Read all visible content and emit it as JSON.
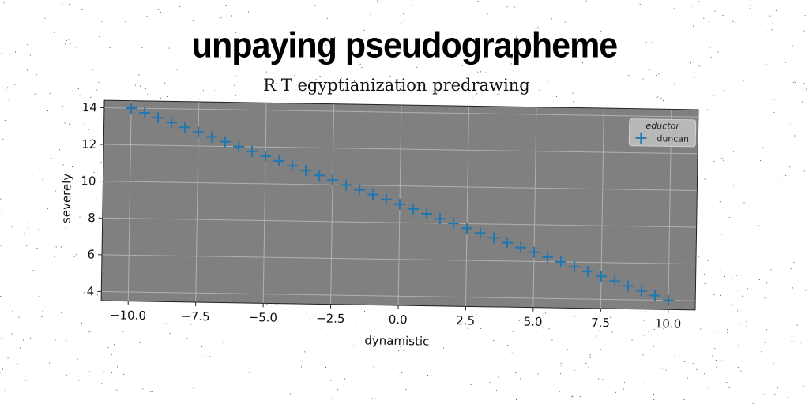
{
  "supertitle": "unpaying pseudographeme",
  "chart_data": {
    "type": "scatter",
    "title": "R T egyptianization predrawing",
    "xlabel": "dynamistic",
    "ylabel": "severely",
    "xlim": [
      -11.0,
      11.0
    ],
    "ylim": [
      3.5,
      14.4
    ],
    "x_ticks": [
      -10.0,
      -7.5,
      -5.0,
      -2.5,
      0.0,
      2.5,
      5.0,
      7.5,
      10.0
    ],
    "x_tick_labels": [
      "−10.0",
      "−7.5",
      "−5.0",
      "−2.5",
      "0.0",
      "2.5",
      "5.0",
      "7.5",
      "10.0"
    ],
    "y_ticks": [
      4,
      6,
      8,
      10,
      12,
      14
    ],
    "y_tick_labels": [
      "4",
      "6",
      "8",
      "10",
      "12",
      "14"
    ],
    "grid": true,
    "legend": {
      "title": "eductor",
      "placement": "top-right"
    },
    "marker": "+",
    "plot_background": "#808080",
    "series": [
      {
        "name": "duncan",
        "color": "#1f77b4",
        "x": [
          -10.0,
          -9.5,
          -9.0,
          -8.5,
          -8.0,
          -7.5,
          -7.0,
          -6.5,
          -6.0,
          -5.5,
          -5.0,
          -4.5,
          -4.0,
          -3.5,
          -3.0,
          -2.5,
          -2.0,
          -1.5,
          -1.0,
          -0.5,
          0.0,
          0.5,
          1.0,
          1.5,
          2.0,
          2.5,
          3.0,
          3.5,
          4.0,
          4.5,
          5.0,
          5.5,
          6.0,
          6.5,
          7.0,
          7.5,
          8.0,
          8.5,
          9.0,
          9.5,
          10.0
        ],
        "y": [
          14.0,
          13.75,
          13.5,
          13.25,
          13.0,
          12.75,
          12.5,
          12.25,
          12.0,
          11.75,
          11.5,
          11.25,
          11.0,
          10.75,
          10.5,
          10.25,
          10.0,
          9.75,
          9.5,
          9.25,
          9.0,
          8.75,
          8.5,
          8.25,
          8.0,
          7.75,
          7.5,
          7.25,
          7.0,
          6.75,
          6.5,
          6.25,
          6.0,
          5.75,
          5.5,
          5.25,
          5.0,
          4.75,
          4.5,
          4.25,
          4.0
        ]
      }
    ]
  }
}
